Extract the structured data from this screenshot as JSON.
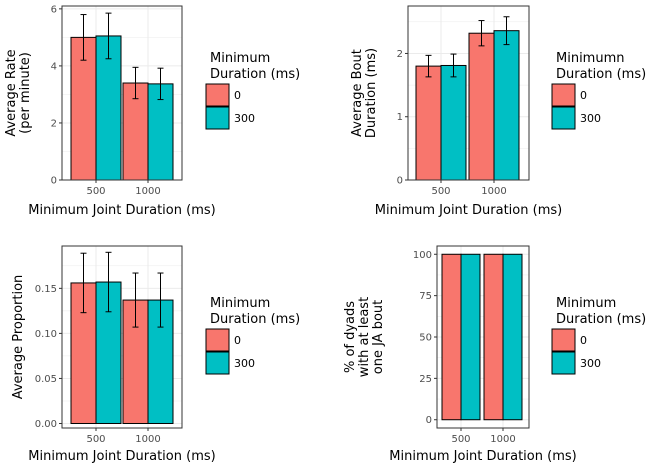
{
  "colors": {
    "series_0": "#F8766D",
    "series_300": "#00BFC4",
    "grid": "#ebebeb",
    "border": "#000000"
  },
  "chart_data": [
    {
      "type": "bar",
      "categories": [
        "500",
        "1000"
      ],
      "series": [
        {
          "name": "0",
          "values": [
            5.0,
            3.4
          ],
          "error": [
            0.8,
            0.55
          ]
        },
        {
          "name": "300",
          "values": [
            5.05,
            3.37
          ],
          "error": [
            0.8,
            0.55
          ]
        }
      ],
      "xlabel": "Minimum Joint Duration (ms)",
      "ylabel_lines": [
        "Average Rate",
        "(per minute)"
      ],
      "ylim": [
        0,
        6.1
      ],
      "yticks": [
        0,
        2,
        4,
        6
      ],
      "ytick_labels": [
        "0",
        "2",
        "4",
        "6"
      ],
      "legend_title_lines": [
        "Minimum",
        "Duration (ms)"
      ],
      "legend_position": "right",
      "grid": true
    },
    {
      "type": "bar",
      "categories": [
        "500",
        "1000"
      ],
      "series": [
        {
          "name": "0",
          "values": [
            1.8,
            2.32
          ],
          "error": [
            0.17,
            0.2
          ]
        },
        {
          "name": "300",
          "values": [
            1.81,
            2.36
          ],
          "error": [
            0.18,
            0.22
          ]
        }
      ],
      "xlabel": "Minimum Joint Duration (ms)",
      "ylabel_lines": [
        "Average Bout",
        "Duration (ms)"
      ],
      "ylim": [
        0,
        2.75
      ],
      "yticks": [
        0,
        1,
        2
      ],
      "ytick_labels": [
        "0",
        "1",
        "2"
      ],
      "legend_title_lines": [
        "Minimumn",
        "Duration (ms)"
      ],
      "legend_position": "right",
      "grid": true
    },
    {
      "type": "bar",
      "categories": [
        "500",
        "1000"
      ],
      "series": [
        {
          "name": "0",
          "values": [
            0.156,
            0.137
          ],
          "error": [
            0.033,
            0.03
          ]
        },
        {
          "name": "300",
          "values": [
            0.157,
            0.137
          ],
          "error": [
            0.033,
            0.03
          ]
        }
      ],
      "xlabel": "Minimum Joint Duration (ms)",
      "ylabel_lines": [
        "Average Proportion"
      ],
      "ylim": [
        -0.005,
        0.197
      ],
      "yticks": [
        0,
        0.05,
        0.1,
        0.15
      ],
      "ytick_labels": [
        "0.00",
        "0.05",
        "0.10",
        "0.15"
      ],
      "legend_title_lines": [
        "Minimum",
        "Duration (ms)"
      ],
      "legend_position": "right",
      "grid": true
    },
    {
      "type": "bar",
      "categories": [
        "500",
        "1000"
      ],
      "series": [
        {
          "name": "0",
          "values": [
            100,
            100
          ]
        },
        {
          "name": "300",
          "values": [
            100,
            100
          ]
        }
      ],
      "xlabel": "Minimum Joint Duration (ms)",
      "ylabel_lines": [
        "% of dyads",
        "with at least",
        "one JA bout"
      ],
      "ylim": [
        -5,
        105
      ],
      "yticks": [
        0,
        25,
        50,
        75,
        100
      ],
      "ytick_labels": [
        "0",
        "25",
        "50",
        "75",
        "100"
      ],
      "legend_title_lines": [
        "Minimum",
        "Duration (ms)"
      ],
      "legend_position": "right",
      "grid": true
    }
  ]
}
